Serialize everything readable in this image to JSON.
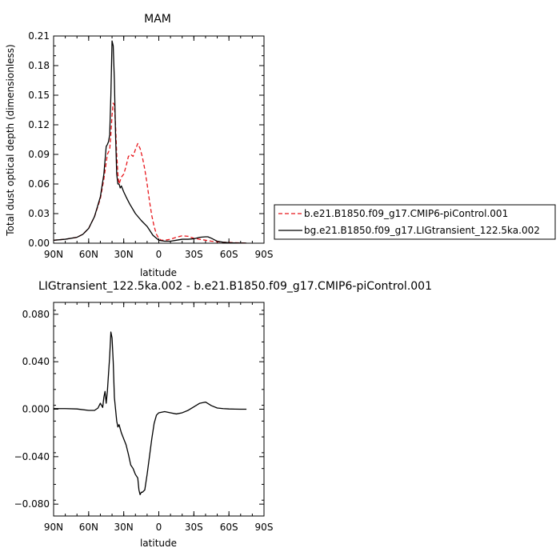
{
  "chart_data": [
    {
      "type": "line",
      "title": "MAM",
      "xlabel": "latitude",
      "ylabel": "Total dust optical depth (dimensionless)",
      "xlim": [
        90,
        -90
      ],
      "ylim": [
        0,
        0.21
      ],
      "xticks": [
        90,
        60,
        30,
        0,
        -30,
        -60,
        -90
      ],
      "xtick_labels": [
        "90N",
        "60N",
        "30N",
        "0",
        "30S",
        "60S",
        "90S"
      ],
      "yticks": [
        0,
        0.03,
        0.06,
        0.09,
        0.12,
        0.15,
        0.18,
        0.21
      ],
      "ytick_labels": [
        "0.00",
        "0.03",
        "0.06",
        "0.09",
        "0.12",
        "0.15",
        "0.18",
        "0.21"
      ],
      "grid": false,
      "legend_position": "right",
      "series": [
        {
          "name": "b.e21.B1850.f09_g17.CMIP6-piControl.001",
          "color": "#e8161b",
          "dash": "dashed",
          "x": [
            90,
            80,
            70,
            65,
            60,
            55,
            50,
            47,
            44,
            42,
            41,
            40,
            39,
            38,
            37,
            36,
            35,
            34,
            32,
            30,
            28,
            26,
            24,
            22,
            20,
            18,
            16,
            14,
            12,
            10,
            8,
            6,
            4,
            2,
            0,
            -2,
            -5,
            -10,
            -15,
            -20,
            -25,
            -30,
            -35,
            -40,
            -45,
            -50,
            -55,
            -60,
            -65,
            -70,
            -75
          ],
          "y": [
            0.003,
            0.004,
            0.006,
            0.009,
            0.015,
            0.027,
            0.045,
            0.065,
            0.09,
            0.095,
            0.11,
            0.13,
            0.142,
            0.14,
            0.12,
            0.09,
            0.07,
            0.06,
            0.067,
            0.07,
            0.078,
            0.088,
            0.09,
            0.088,
            0.095,
            0.101,
            0.096,
            0.087,
            0.075,
            0.06,
            0.043,
            0.028,
            0.017,
            0.009,
            0.005,
            0.003,
            0.003,
            0.004,
            0.006,
            0.0075,
            0.007,
            0.005,
            0.004,
            0.003,
            0.002,
            0.0015,
            0.001,
            0.0008,
            0.0005,
            0.0003,
            0.0002
          ]
        },
        {
          "name": "bg.e21.B1850.f09_g17.LIGtransient_122.5ka.002",
          "color": "#000000",
          "dash": "solid",
          "x": [
            90,
            80,
            70,
            65,
            60,
            55,
            50,
            47,
            45,
            44,
            43,
            42,
            41,
            40,
            39,
            38,
            37,
            36,
            35,
            34,
            33,
            32,
            30,
            28,
            25,
            20,
            15,
            10,
            5,
            0,
            -5,
            -10,
            -15,
            -20,
            -25,
            -30,
            -35,
            -40,
            -42,
            -45,
            -50,
            -55,
            -60,
            -65,
            -70,
            -75
          ],
          "y": [
            0.003,
            0.004,
            0.006,
            0.009,
            0.015,
            0.027,
            0.047,
            0.07,
            0.098,
            0.1,
            0.103,
            0.11,
            0.15,
            0.205,
            0.2,
            0.165,
            0.11,
            0.07,
            0.06,
            0.06,
            0.056,
            0.058,
            0.052,
            0.047,
            0.04,
            0.03,
            0.023,
            0.017,
            0.008,
            0.003,
            0.002,
            0.002,
            0.003,
            0.004,
            0.004,
            0.0045,
            0.006,
            0.0065,
            0.0065,
            0.005,
            0.002,
            0.001,
            0.0005,
            0.0003,
            0.0002,
            0.0001
          ]
        }
      ]
    },
    {
      "type": "line",
      "title": "LIGtransient_122.5ka.002 - b.e21.B1850.f09_g17.CMIP6-piControl.001",
      "xlabel": "latitude",
      "ylabel": "",
      "xlim": [
        90,
        -90
      ],
      "ylim": [
        -0.09,
        0.09
      ],
      "xticks": [
        90,
        60,
        30,
        0,
        -30,
        -60,
        -90
      ],
      "xtick_labels": [
        "90N",
        "60N",
        "30N",
        "0",
        "30S",
        "60S",
        "90S"
      ],
      "yticks": [
        -0.08,
        -0.04,
        0,
        0.04,
        0.08
      ],
      "ytick_labels": [
        "−0.080",
        "−0.040",
        "0.000",
        "0.040",
        "0.080"
      ],
      "grid": false,
      "series": [
        {
          "name": "",
          "color": "#000000",
          "dash": "solid",
          "x": [
            90,
            80,
            70,
            60,
            55,
            52,
            50,
            48,
            47,
            46,
            45,
            44,
            43,
            42,
            41,
            40,
            39,
            38,
            37,
            36,
            35,
            34,
            32,
            30,
            28,
            26,
            24,
            22,
            20,
            18,
            17,
            16,
            15,
            14,
            12,
            10,
            8,
            6,
            4,
            2,
            0,
            -5,
            -10,
            -15,
            -20,
            -25,
            -30,
            -35,
            -40,
            -45,
            -50,
            -55,
            -60,
            -65,
            -70,
            -75
          ],
          "y": [
            0.0005,
            0.0005,
            0.0002,
            -0.001,
            -0.001,
            0.001,
            0.005,
            0.0015,
            0.01,
            0.015,
            0.005,
            0.015,
            0.03,
            0.045,
            0.065,
            0.06,
            0.04,
            0.01,
            0.0,
            -0.01,
            -0.015,
            -0.013,
            -0.02,
            -0.025,
            -0.03,
            -0.038,
            -0.047,
            -0.05,
            -0.055,
            -0.058,
            -0.068,
            -0.072,
            -0.07,
            -0.07,
            -0.068,
            -0.055,
            -0.04,
            -0.025,
            -0.012,
            -0.005,
            -0.003,
            -0.002,
            -0.003,
            -0.004,
            -0.003,
            -0.001,
            0.002,
            0.005,
            0.006,
            0.003,
            0.001,
            0.0005,
            0.0002,
            0.0001,
            0.0,
            0.0
          ]
        }
      ]
    }
  ]
}
